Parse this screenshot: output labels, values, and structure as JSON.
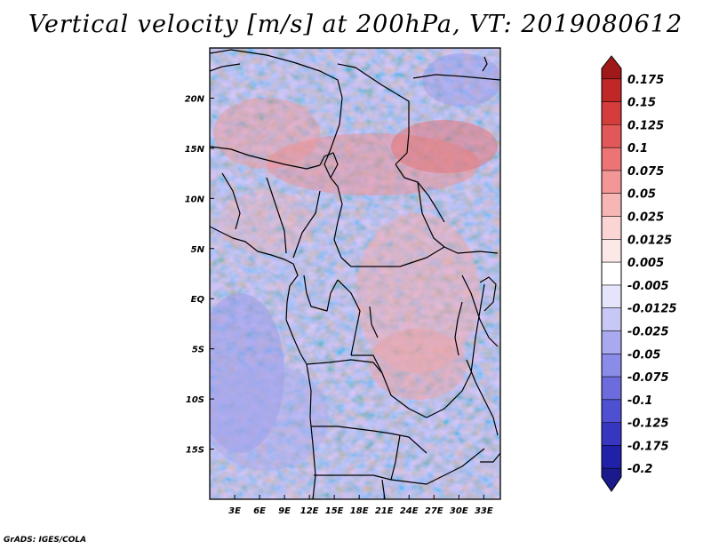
{
  "title": "Vertical velocity [m/s] at 200hPa, VT: 2019080612",
  "footer": "GrADS: IGES/COLA",
  "map": {
    "variable": "Vertical velocity",
    "units": "m/s",
    "level": "200hPa",
    "valid_time": "2019080612",
    "lon_range": [
      0,
      35
    ],
    "lat_range": [
      -20,
      25
    ],
    "lat_labels": [
      "20N",
      "15N",
      "10N",
      "5N",
      "EQ",
      "5S",
      "10S",
      "15S"
    ],
    "lat_values": [
      20,
      15,
      10,
      5,
      0,
      -5,
      -10,
      -15
    ],
    "lon_labels": [
      "3E",
      "6E",
      "9E",
      "12E",
      "15E",
      "18E",
      "21E",
      "24E",
      "27E",
      "30E",
      "33E"
    ],
    "lon_values": [
      3,
      6,
      9,
      12,
      15,
      18,
      21,
      24,
      27,
      30,
      33
    ]
  },
  "colorbar": {
    "labels": [
      "0.175",
      "0.15",
      "0.125",
      "0.1",
      "0.075",
      "0.05",
      "0.025",
      "0.0125",
      "0.005",
      "-0.005",
      "-0.0125",
      "-0.025",
      "-0.05",
      "-0.075",
      "-0.1",
      "-0.125",
      "-0.175",
      "-0.2"
    ],
    "colors": [
      "#a01818",
      "#c02828",
      "#d53c3c",
      "#e25858",
      "#ec7474",
      "#f29696",
      "#f7b6b6",
      "#fbd4d4",
      "#fde8e8",
      "#ffffff",
      "#e4e4fb",
      "#c8c8f6",
      "#a9a9ef",
      "#8b8be8",
      "#6c6cdd",
      "#4f4fd1",
      "#3636c0",
      "#2020a8",
      "#1a1a8c"
    ]
  }
}
